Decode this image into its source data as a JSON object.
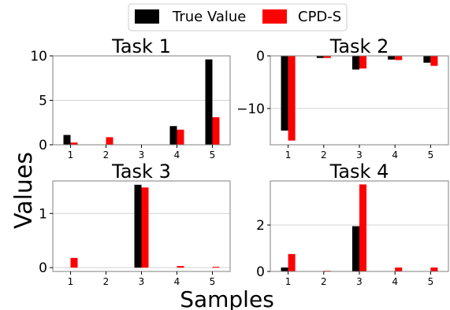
{
  "chart_data": [
    {
      "type": "bar",
      "title": "Task 1",
      "categories": [
        "1",
        "2",
        "3",
        "4",
        "5"
      ],
      "series": [
        {
          "name": "True Value",
          "values": [
            1.1,
            0,
            0,
            2.1,
            9.6
          ]
        },
        {
          "name": "CPD-S",
          "values": [
            0.25,
            0.85,
            0,
            1.7,
            3.1
          ]
        }
      ],
      "ylim": [
        0,
        10
      ],
      "yticks": [
        0,
        5,
        10
      ],
      "grid": true
    },
    {
      "type": "bar",
      "title": "Task 2",
      "categories": [
        "1",
        "2",
        "3",
        "4",
        "5"
      ],
      "series": [
        {
          "name": "True Value",
          "values": [
            -14.2,
            -0.4,
            -2.6,
            -0.7,
            -1.3
          ]
        },
        {
          "name": "CPD-S",
          "values": [
            -16.1,
            -0.4,
            -2.4,
            -0.8,
            -1.9
          ]
        }
      ],
      "ylim": [
        -16.9,
        0
      ],
      "yticks": [
        0,
        -10
      ],
      "grid": true
    },
    {
      "type": "bar",
      "title": "Task 3",
      "categories": [
        "1",
        "2",
        "3",
        "4",
        "5"
      ],
      "series": [
        {
          "name": "True Value",
          "values": [
            0,
            0,
            1.53,
            0,
            0
          ]
        },
        {
          "name": "CPD-S",
          "values": [
            0.18,
            0,
            1.48,
            0.03,
            0.015
          ]
        }
      ],
      "ylim": [
        -0.07,
        1.6
      ],
      "yticks": [
        0,
        1
      ],
      "grid": true
    },
    {
      "type": "bar",
      "title": "Task 4",
      "categories": [
        "1",
        "2",
        "3",
        "4",
        "5"
      ],
      "series": [
        {
          "name": "True Value",
          "values": [
            0.17,
            0,
            1.95,
            0,
            0
          ]
        },
        {
          "name": "CPD-S",
          "values": [
            0.75,
            0.03,
            3.75,
            0.17,
            0.17
          ]
        }
      ],
      "ylim": [
        0,
        3.9
      ],
      "yticks": [
        0,
        2
      ],
      "grid": true
    }
  ],
  "legend": {
    "placement": "top-center",
    "items": [
      {
        "label": "True Value",
        "color": "#000000"
      },
      {
        "label": "CPD-S",
        "color": "#ff0000"
      }
    ]
  },
  "xlabel": "Samples",
  "ylabel": "Values",
  "colors": {
    "true_value": "#000000",
    "cpd_s": "#ff0000",
    "grid": "#d3d3d3",
    "axis": "#7f7f7f"
  }
}
